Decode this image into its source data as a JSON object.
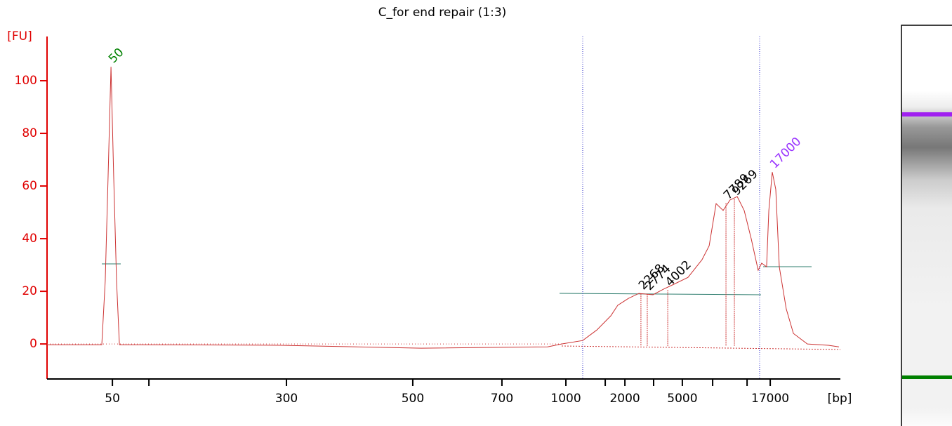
{
  "chart_data": {
    "type": "line",
    "title": "C_for end repair (1:3)",
    "y_label": "[FU]",
    "x_label": "[bp]",
    "color": "#cc3333",
    "axis_color": "#e00000",
    "x": [
      20.0,
      23.45,
      23.67,
      23.85,
      24.03,
      24.2,
      24.38,
      24.56,
      25.88,
      34.73,
      43.58,
      51.55,
      52.43,
      53.76,
      54.65,
      55.53,
      55.97,
      56.64,
      57.3,
      58.19,
      58.85,
      59.51,
      60.4,
      61.28,
      61.73,
      62.17,
      62.61,
      63.05,
      63.5,
      63.94,
      64.38,
      64.82,
      65.04,
      65.35,
      65.49,
      65.71,
      65.93,
      66.15,
      66.59,
      67.04,
      67.92,
      69.25,
      69.91
    ],
    "values": [
      -0.3,
      -0.3,
      24,
      64,
      105.3,
      64,
      24,
      -0.3,
      -0.3,
      -0.5,
      -1.6,
      -1.1,
      0,
      1.3,
      5.3,
      10.7,
      14.7,
      17.3,
      19.2,
      18.7,
      20.8,
      22.7,
      25.3,
      32,
      37.3,
      53.3,
      50.7,
      54.7,
      56,
      50.7,
      40,
      28,
      30.7,
      29.3,
      50.7,
      65.3,
      58.7,
      29.3,
      13.3,
      4,
      0,
      -0.5,
      -1.1
    ],
    "xlim": [
      20,
      70
    ],
    "ylim": [
      -13.3,
      116.8
    ],
    "yticks": [
      0,
      20,
      40,
      60,
      80,
      100
    ],
    "xticks": [
      {
        "value": 24.12,
        "label": "50"
      },
      {
        "value": 35.09,
        "label": "300"
      },
      {
        "value": 43.05,
        "label": "500"
      },
      {
        "value": 48.67,
        "label": "700"
      },
      {
        "value": 52.7,
        "label": "1000"
      },
      {
        "value": 56.42,
        "label": "2000"
      },
      {
        "value": 60.04,
        "label": "5000"
      },
      {
        "value": 65.58,
        "label": "17000"
      }
    ],
    "xminor_ticks": [
      26.42,
      55.18,
      58.23,
      61.95,
      64.12
    ],
    "region": [
      53.76,
      64.91
    ],
    "peaks": [
      {
        "label": 50,
        "x": 24.03,
        "y": 105.3,
        "color": "#008000"
      },
      {
        "label": 2268,
        "x": 57.43,
        "y": 19.2,
        "color": "#000000"
      },
      {
        "label": 2774,
        "x": 57.83,
        "y": 19.0,
        "color": "#000000"
      },
      {
        "label": 4002,
        "x": 59.12,
        "y": 20.5,
        "color": "#000000"
      },
      {
        "label": 7789,
        "x": 62.79,
        "y": 53.5,
        "color": "#000000"
      },
      {
        "label": 9269,
        "x": 63.32,
        "y": 55.0,
        "color": "#000000"
      },
      {
        "label": 17000,
        "x": 65.71,
        "y": 65.3,
        "color": "#9933ff"
      }
    ]
  }
}
